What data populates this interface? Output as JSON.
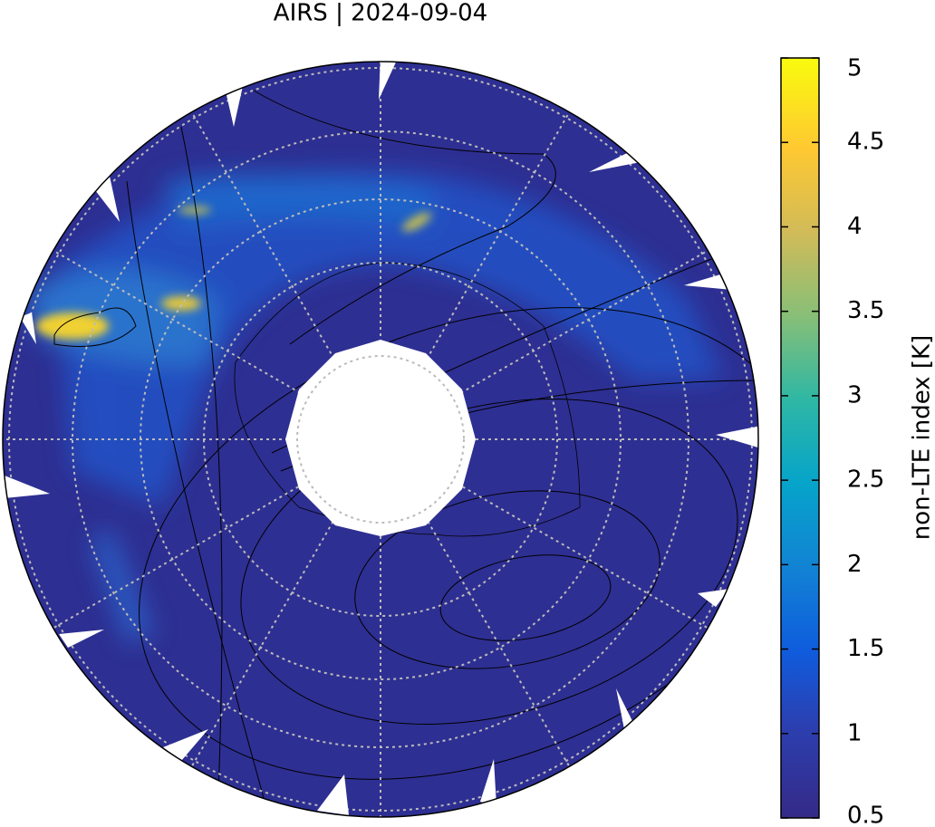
{
  "title": "AIRS | 2024-09-04",
  "colorbar": {
    "label": "non-LTE index [K]",
    "lim": [
      0.5,
      5
    ],
    "ticks": [
      0.5,
      1,
      1.5,
      2,
      2.5,
      3,
      3.5,
      4,
      4.5,
      5
    ]
  }
}
